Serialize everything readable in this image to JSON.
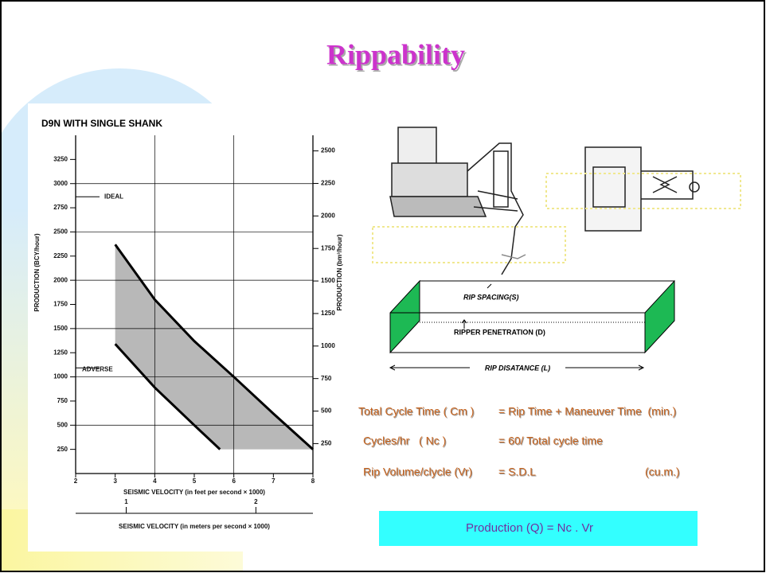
{
  "header": {
    "title": "Rippability"
  },
  "chart_data": {
    "type": "line",
    "title": "D9N WITH SINGLE SHANK",
    "x_label": "SEISMIC VELOCITY (in feet per second × 1000)",
    "x2_label": "SEISMIC VELOCITY (in meters per second × 1000)",
    "y_label": "PRODUCTION (BCY/hour)",
    "y2_label": "PRODUCTION (bm³/hour)",
    "xlim": [
      2,
      8
    ],
    "xticks": [
      2,
      3,
      4,
      5,
      6,
      7,
      8
    ],
    "x2lim": [
      0.61,
      2.44
    ],
    "x2ticks": [
      1,
      2
    ],
    "ylim": [
      0,
      3500
    ],
    "yticks": [
      250,
      500,
      750,
      1000,
      1250,
      1500,
      1750,
      2000,
      2250,
      2500,
      2750,
      3000,
      3250
    ],
    "y2lim": [
      20,
      2620
    ],
    "y2ticks": [
      250,
      500,
      750,
      1000,
      1250,
      1500,
      1750,
      2000,
      2250,
      2500
    ],
    "grid": true,
    "shade_color": "#b8b8b8",
    "series": [
      {
        "name": "IDEAL",
        "color": "#000000",
        "x": [
          3,
          4,
          5,
          6,
          7,
          8
        ],
        "values": [
          2370,
          1800,
          1370,
          1000,
          620,
          250
        ]
      },
      {
        "name": "ADVERSE",
        "color": "#000000",
        "x": [
          3,
          4,
          5,
          5.65
        ],
        "values": [
          1340,
          890,
          500,
          250
        ]
      }
    ]
  },
  "diagram": {
    "spacing": "RIP SPACING(S)",
    "penetration": "RIPPER PENETRATION (D)",
    "distance": "RIP DISATANCE (L)"
  },
  "formulas": [
    [
      "Total Cycle Time ( Cm )",
      "= Rip Time + Maneuver Time  (min.)"
    ],
    [
      "Cycles/hr   ( Nc )",
      "= 60/ Total cycle time"
    ],
    [
      "Rip Volume/clycle (Vr)",
      "= S.D.L",
      "(cu.m.)"
    ]
  ],
  "production": "Production (Q) = Nc . Vr"
}
